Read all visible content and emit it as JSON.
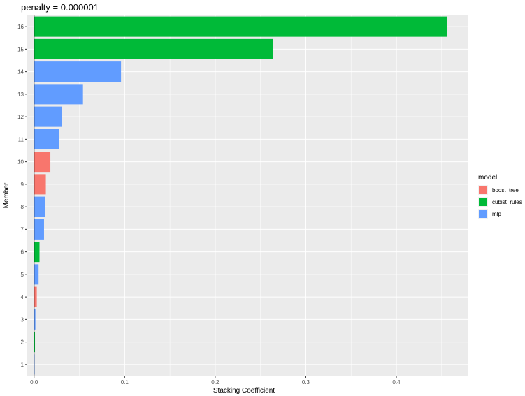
{
  "chart_data": {
    "type": "bar",
    "orientation": "horizontal",
    "title": "penalty = 0.000001",
    "xlabel": "Stacking Coefficient",
    "ylabel": "Member",
    "xlim": [
      -0.0075,
      0.4795
    ],
    "x_ticks": [
      "0.0",
      "0.1",
      "0.2",
      "0.3",
      "0.4"
    ],
    "x_tick_values": [
      0,
      0.1,
      0.2,
      0.3,
      0.4
    ],
    "categories": [
      "1",
      "2",
      "3",
      "4",
      "5",
      "6",
      "7",
      "8",
      "9",
      "10",
      "11",
      "12",
      "13",
      "14",
      "15",
      "16"
    ],
    "values": [
      0.0005,
      0.001,
      0.0015,
      0.003,
      0.005,
      0.006,
      0.011,
      0.012,
      0.013,
      0.018,
      0.028,
      0.031,
      0.054,
      0.096,
      0.264,
      0.456
    ],
    "models": [
      "mlp",
      "cubist_rules",
      "mlp",
      "boost_tree",
      "mlp",
      "cubist_rules",
      "mlp",
      "mlp",
      "boost_tree",
      "boost_tree",
      "mlp",
      "mlp",
      "mlp",
      "mlp",
      "cubist_rules",
      "cubist_rules"
    ],
    "legend": {
      "title": "model",
      "position": "right",
      "entries": [
        {
          "name": "boost_tree",
          "color": "#F8766D"
        },
        {
          "name": "cubist_rules",
          "color": "#00BA38"
        },
        {
          "name": "mlp",
          "color": "#619CFF"
        }
      ]
    },
    "grid": true,
    "reference_line_x": 0
  }
}
